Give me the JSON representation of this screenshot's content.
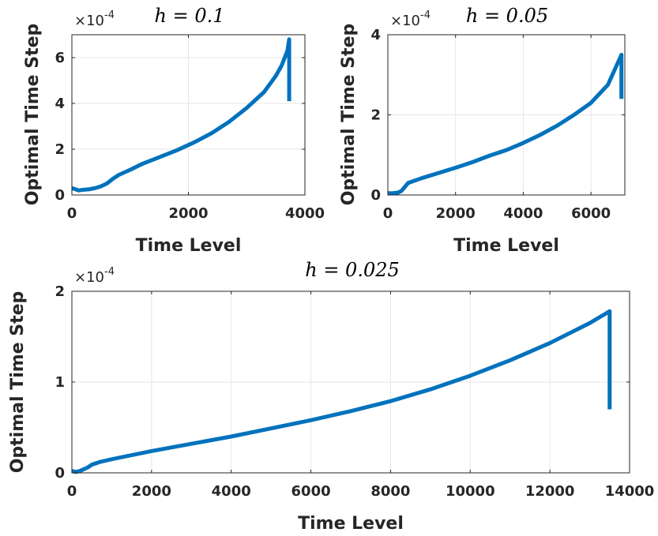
{
  "chart_data": [
    {
      "type": "line",
      "title": "h = 0.1",
      "xlabel": "Time Level",
      "ylabel": "Optimal Time Step",
      "y_exponent": "×10",
      "y_exponent_power": "-4",
      "xlim": [
        0,
        4000
      ],
      "ylim": [
        0,
        7
      ],
      "xticks": [
        0,
        2000,
        4000
      ],
      "yticks": [
        0,
        2,
        4,
        6
      ],
      "xtick_labels": [
        "0",
        "2000",
        "4000"
      ],
      "ytick_labels": [
        "0",
        "2",
        "4",
        "6"
      ],
      "grid": true,
      "series": [
        {
          "color": "#0072bd",
          "x": [
            0,
            60,
            120,
            200,
            300,
            400,
            500,
            600,
            700,
            800,
            1000,
            1200,
            1500,
            1800,
            2100,
            2400,
            2700,
            3000,
            3300,
            3500,
            3600,
            3700,
            3730,
            3730
          ],
          "y": [
            0.3,
            0.25,
            0.2,
            0.23,
            0.25,
            0.3,
            0.38,
            0.5,
            0.7,
            0.87,
            1.1,
            1.35,
            1.65,
            1.95,
            2.3,
            2.7,
            3.2,
            3.8,
            4.5,
            5.2,
            5.65,
            6.3,
            6.8,
            4.1
          ]
        }
      ]
    },
    {
      "type": "line",
      "title": "h = 0.05",
      "xlabel": "Time Level",
      "ylabel": "Optimal Time Step",
      "y_exponent": "×10",
      "y_exponent_power": "-4",
      "xlim": [
        0,
        7000
      ],
      "ylim": [
        0,
        4
      ],
      "xticks": [
        0,
        2000,
        4000,
        6000
      ],
      "yticks": [
        0,
        2,
        4
      ],
      "xtick_labels": [
        "0",
        "2000",
        "4000",
        "6000"
      ],
      "ytick_labels": [
        "0",
        "2",
        "4"
      ],
      "grid": true,
      "series": [
        {
          "color": "#0072bd",
          "x": [
            0,
            100,
            200,
            300,
            400,
            500,
            600,
            700,
            1000,
            1500,
            2000,
            2500,
            3000,
            3500,
            4000,
            4500,
            5000,
            5500,
            6000,
            6500,
            6900,
            6900
          ],
          "y": [
            0.05,
            0.04,
            0.05,
            0.06,
            0.1,
            0.2,
            0.3,
            0.33,
            0.42,
            0.55,
            0.68,
            0.82,
            0.98,
            1.12,
            1.3,
            1.5,
            1.73,
            2.0,
            2.3,
            2.75,
            3.5,
            2.4
          ]
        }
      ]
    },
    {
      "type": "line",
      "title": "h = 0.025",
      "xlabel": "Time Level",
      "ylabel": "Optimal Time Step",
      "y_exponent": "×10",
      "y_exponent_power": "-4",
      "xlim": [
        0,
        14000
      ],
      "ylim": [
        0,
        2
      ],
      "xticks": [
        0,
        2000,
        4000,
        6000,
        8000,
        10000,
        12000,
        14000
      ],
      "yticks": [
        0,
        1,
        2
      ],
      "xtick_labels": [
        "0",
        "2000",
        "4000",
        "6000",
        "8000",
        "10000",
        "12000",
        "14000"
      ],
      "ytick_labels": [
        "0",
        "1",
        "2"
      ],
      "grid": true,
      "series": [
        {
          "color": "#0072bd",
          "x": [
            0,
            100,
            200,
            300,
            400,
            500,
            700,
            1000,
            2000,
            3000,
            4000,
            5000,
            6000,
            7000,
            8000,
            9000,
            10000,
            11000,
            12000,
            13000,
            13500,
            13500
          ],
          "y": [
            0.02,
            0.01,
            0.02,
            0.04,
            0.06,
            0.09,
            0.12,
            0.15,
            0.24,
            0.32,
            0.4,
            0.49,
            0.58,
            0.68,
            0.79,
            0.92,
            1.07,
            1.24,
            1.43,
            1.65,
            1.78,
            0.7
          ]
        }
      ]
    }
  ]
}
